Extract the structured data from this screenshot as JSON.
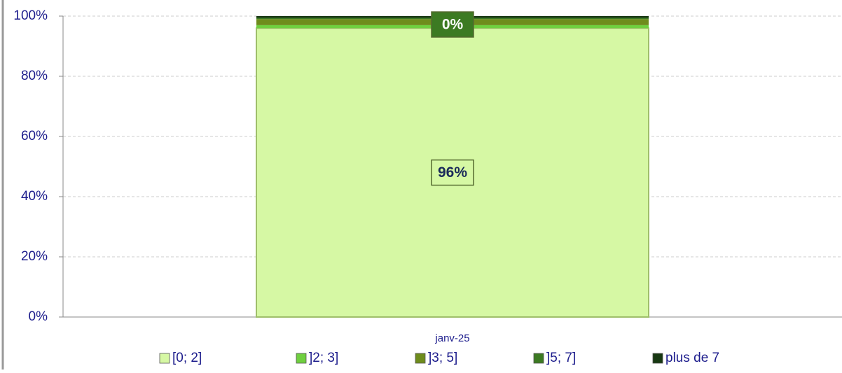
{
  "chart_data": {
    "type": "stacked_bar_100",
    "categories": [
      "janv-25"
    ],
    "series": [
      {
        "name": "[0; 2]",
        "color": "#d6f8a4",
        "values": [
          96
        ],
        "value_labels": [
          "96%"
        ]
      },
      {
        "name": "]2; 3]",
        "color": "#6fcf3f",
        "values": [
          1
        ]
      },
      {
        "name": "]3; 5]",
        "color": "#6e8c1c",
        "values": [
          2
        ]
      },
      {
        "name": "]5; 7]",
        "color": "#3c7a22",
        "values": [
          0.4
        ],
        "value_labels": [
          "0%"
        ]
      },
      {
        "name": "plus de 7",
        "color": "#173812",
        "values": [
          0.6
        ]
      }
    ],
    "ylim": [
      0,
      100
    ],
    "yticks": [
      {
        "value": 0,
        "label": "0%"
      },
      {
        "value": 20,
        "label": "20%"
      },
      {
        "value": 40,
        "label": "40%"
      },
      {
        "value": 60,
        "label": "60%"
      },
      {
        "value": 80,
        "label": "80%"
      },
      {
        "value": 100,
        "label": "100%"
      }
    ],
    "grid": true,
    "legend": "bottom"
  }
}
